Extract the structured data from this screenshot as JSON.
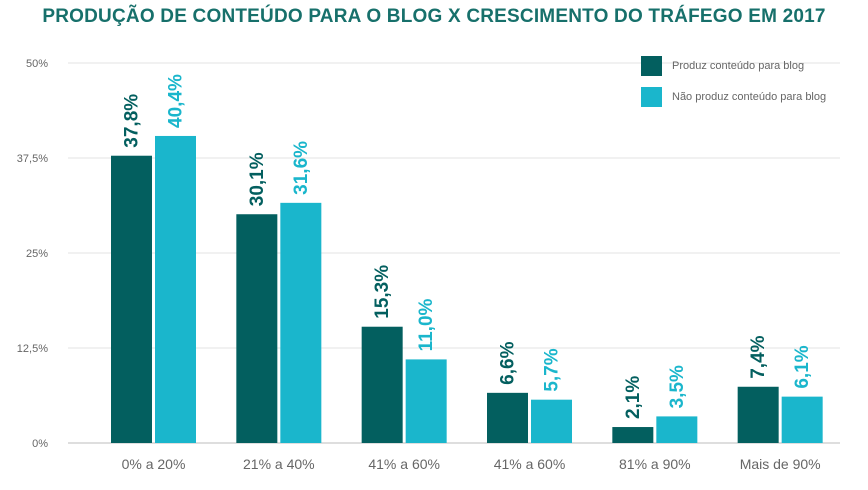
{
  "chart_data": {
    "type": "bar",
    "title": "PRODUÇÃO DE CONTEÚDO PARA O BLOG X CRESCIMENTO DO TRÁFEGO EM 2017",
    "categories": [
      "0% a 20%",
      "21% a 40%",
      "41% a 60%",
      "41% a 60%",
      "81% a 90%",
      "Mais de 90%"
    ],
    "series": [
      {
        "name": "Produz conteúdo para blog",
        "color": "#035f5f",
        "values": [
          37.8,
          30.1,
          15.3,
          6.6,
          2.1,
          7.4
        ],
        "labels": [
          "37,8%",
          "30,1%",
          "15,3%",
          "6,6%",
          "2,1%",
          "7,4%"
        ]
      },
      {
        "name": "Não produz conteúdo para blog",
        "color": "#1ab6cc",
        "values": [
          40.4,
          31.6,
          11.0,
          5.7,
          3.5,
          6.1
        ],
        "labels": [
          "40,4%",
          "31,6%",
          "11,0%",
          "5,7%",
          "3,5%",
          "6,1%"
        ]
      }
    ],
    "yticks": [
      0,
      12.5,
      25,
      37.5,
      50
    ],
    "ytick_labels": [
      "0%",
      "12,5%",
      "25%",
      "37,5%",
      "50%"
    ],
    "ylim": [
      0,
      50
    ],
    "grid": true,
    "legend_position": "top-right",
    "xlabel": "",
    "ylabel": ""
  }
}
